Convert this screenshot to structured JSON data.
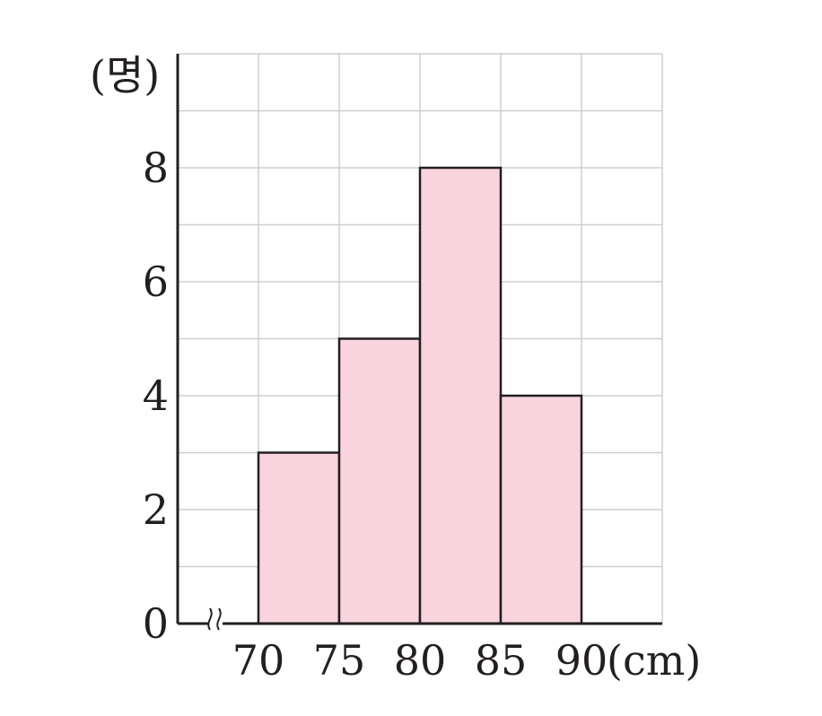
{
  "chart_data": {
    "type": "bar",
    "subtype": "histogram",
    "bin_edges": [
      70,
      75,
      80,
      85,
      90
    ],
    "values": [
      3,
      5,
      8,
      4
    ],
    "x_ticks": [
      "70",
      "75",
      "80",
      "85",
      "90"
    ],
    "y_ticks": [
      "0",
      "2",
      "4",
      "6",
      "8"
    ],
    "y_unit_label": "(명)",
    "x_unit_label": "(cm)",
    "xlim": [
      65,
      95
    ],
    "ylim": [
      0,
      10
    ],
    "grid": true,
    "axis_break": "x",
    "colors": {
      "bar_fill": "#f9d3dd",
      "bar_edge": "#231f20",
      "grid": "#cfcfcf",
      "axis": "#231f20",
      "text": "#231f20"
    }
  }
}
